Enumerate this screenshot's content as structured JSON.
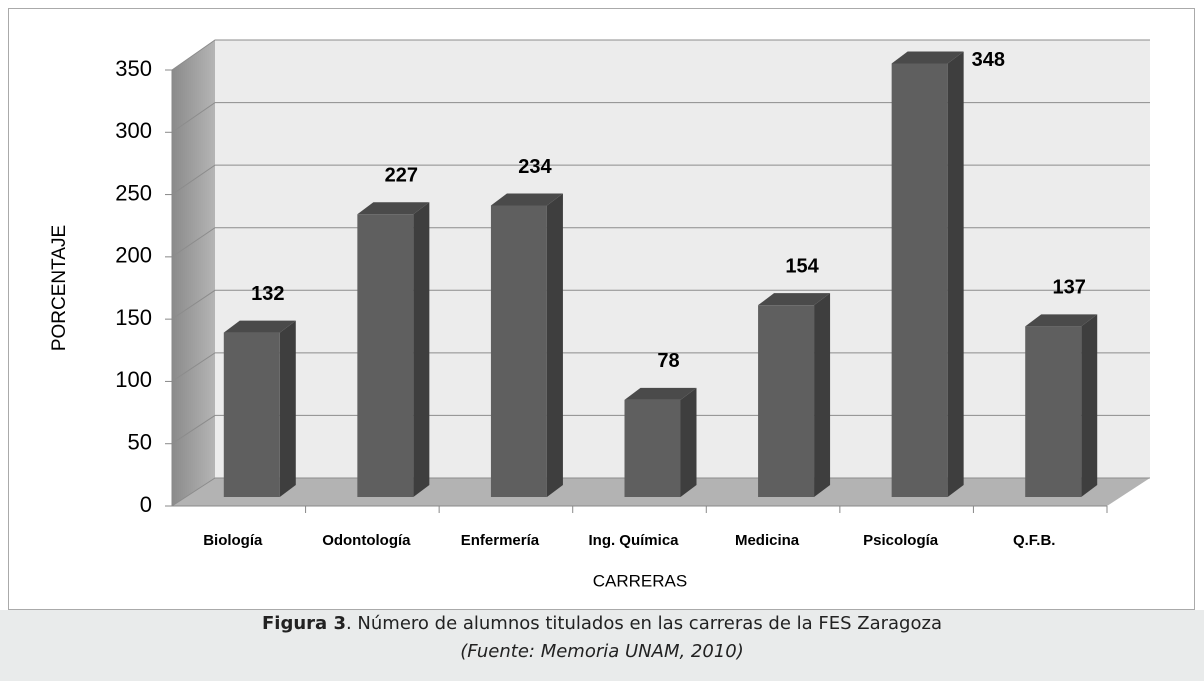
{
  "chart_data": {
    "type": "bar3d",
    "categories": [
      "Biología",
      "Odontología",
      "Enfermería",
      "Ing. Química",
      "Medicina",
      "Psicología",
      "Q.F.B."
    ],
    "values": [
      132,
      227,
      234,
      78,
      154,
      348,
      137
    ],
    "color": "#5f5f5f",
    "ylim": [
      0,
      350
    ],
    "yticks": [
      0,
      50,
      100,
      150,
      200,
      250,
      300,
      350
    ],
    "grid": true,
    "ylabel": "PORCENTAJE",
    "xlabel": "CARRERAS"
  },
  "caption": {
    "figure": "Figura 3",
    "text": ". Número de alumnos titulados en las carreras de la FES Zaragoza",
    "source": "(Fuente: Memoria UNAM, 2010)"
  }
}
